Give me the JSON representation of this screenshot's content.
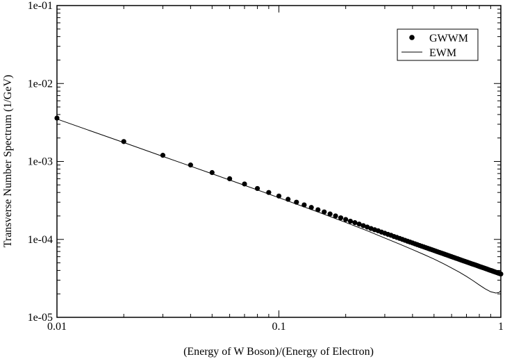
{
  "chart_data": {
    "type": "scatter",
    "title": "",
    "xlabel": "(Energy of W Boson)/(Energy of Electron)",
    "ylabel": "Transverse Number Spectrum (1/GeV)",
    "x_scale": "log",
    "y_scale": "log",
    "xlim": [
      0.01,
      1
    ],
    "ylim": [
      1e-05,
      0.1
    ],
    "x_ticks": [
      {
        "value": 0.01,
        "label": "0.01"
      },
      {
        "value": 0.1,
        "label": "0.1"
      },
      {
        "value": 1,
        "label": "1"
      }
    ],
    "y_ticks": [
      {
        "value": 1e-05,
        "label": "1e-05"
      },
      {
        "value": 0.0001,
        "label": "1e-04"
      },
      {
        "value": 0.001,
        "label": "1e-03"
      },
      {
        "value": 0.01,
        "label": "1e-02"
      },
      {
        "value": 0.1,
        "label": "1e-01"
      }
    ],
    "grid": false,
    "legend_position": "top-right",
    "series": [
      {
        "name": "GWWM",
        "style": "markers",
        "color": "#000000",
        "points": [
          [
            0.01,
            0.0036
          ],
          [
            0.02,
            0.0018
          ],
          [
            0.03,
            0.0012
          ],
          [
            0.04,
            0.0009
          ],
          [
            0.05,
            0.00072
          ],
          [
            0.06,
            0.0006
          ],
          [
            0.07,
            0.000514
          ],
          [
            0.08,
            0.00045
          ],
          [
            0.09,
            0.0004
          ],
          [
            0.1,
            0.00036
          ],
          [
            0.11,
            0.000327
          ],
          [
            0.12,
            0.0003
          ],
          [
            0.13,
            0.000277
          ],
          [
            0.14,
            0.000257
          ],
          [
            0.15,
            0.00024
          ],
          [
            0.16,
            0.000225
          ],
          [
            0.17,
            0.000212
          ],
          [
            0.18,
            0.0002
          ],
          [
            0.19,
            0.000189
          ],
          [
            0.2,
            0.00018
          ],
          [
            0.21,
            0.000171
          ],
          [
            0.22,
            0.000164
          ],
          [
            0.23,
            0.000157
          ],
          [
            0.24,
            0.00015
          ],
          [
            0.25,
            0.000144
          ],
          [
            0.26,
            0.000138
          ],
          [
            0.27,
            0.000133
          ],
          [
            0.28,
            0.000129
          ],
          [
            0.29,
            0.000124
          ],
          [
            0.3,
            0.00012
          ],
          [
            0.31,
            0.000116
          ],
          [
            0.32,
            0.000113
          ],
          [
            0.33,
            0.000109
          ],
          [
            0.34,
            0.000106
          ],
          [
            0.35,
            0.000103
          ],
          [
            0.36,
            0.0001
          ],
          [
            0.37,
            9.73e-05
          ],
          [
            0.38,
            9.47e-05
          ],
          [
            0.39,
            9.23e-05
          ],
          [
            0.4,
            9e-05
          ],
          [
            0.41,
            8.78e-05
          ],
          [
            0.42,
            8.57e-05
          ],
          [
            0.43,
            8.37e-05
          ],
          [
            0.44,
            8.18e-05
          ],
          [
            0.45,
            8e-05
          ],
          [
            0.46,
            7.83e-05
          ],
          [
            0.47,
            7.66e-05
          ],
          [
            0.48,
            7.5e-05
          ],
          [
            0.49,
            7.35e-05
          ],
          [
            0.5,
            7.2e-05
          ],
          [
            0.51,
            7.06e-05
          ],
          [
            0.52,
            6.92e-05
          ],
          [
            0.53,
            6.79e-05
          ],
          [
            0.54,
            6.67e-05
          ],
          [
            0.55,
            6.55e-05
          ],
          [
            0.56,
            6.43e-05
          ],
          [
            0.57,
            6.32e-05
          ],
          [
            0.58,
            6.21e-05
          ],
          [
            0.59,
            6.1e-05
          ],
          [
            0.6,
            6e-05
          ],
          [
            0.61,
            5.9e-05
          ],
          [
            0.62,
            5.81e-05
          ],
          [
            0.63,
            5.71e-05
          ],
          [
            0.64,
            5.63e-05
          ],
          [
            0.65,
            5.54e-05
          ],
          [
            0.66,
            5.45e-05
          ],
          [
            0.67,
            5.37e-05
          ],
          [
            0.68,
            5.29e-05
          ],
          [
            0.69,
            5.22e-05
          ],
          [
            0.7,
            5.14e-05
          ],
          [
            0.71,
            5.07e-05
          ],
          [
            0.72,
            5e-05
          ],
          [
            0.73,
            4.93e-05
          ],
          [
            0.74,
            4.86e-05
          ],
          [
            0.75,
            4.8e-05
          ],
          [
            0.76,
            4.74e-05
          ],
          [
            0.77,
            4.68e-05
          ],
          [
            0.78,
            4.62e-05
          ],
          [
            0.79,
            4.56e-05
          ],
          [
            0.8,
            4.5e-05
          ],
          [
            0.81,
            4.44e-05
          ],
          [
            0.82,
            4.39e-05
          ],
          [
            0.83,
            4.34e-05
          ],
          [
            0.84,
            4.29e-05
          ],
          [
            0.85,
            4.24e-05
          ],
          [
            0.86,
            4.19e-05
          ],
          [
            0.87,
            4.14e-05
          ],
          [
            0.88,
            4.09e-05
          ],
          [
            0.89,
            4.04e-05
          ],
          [
            0.9,
            4e-05
          ],
          [
            0.91,
            3.96e-05
          ],
          [
            0.92,
            3.91e-05
          ],
          [
            0.93,
            3.87e-05
          ],
          [
            0.94,
            3.83e-05
          ],
          [
            0.95,
            3.79e-05
          ],
          [
            0.96,
            3.75e-05
          ],
          [
            0.97,
            3.71e-05
          ],
          [
            0.98,
            3.67e-05
          ],
          [
            0.99,
            3.64e-05
          ],
          [
            1.0,
            3.6e-05
          ]
        ]
      },
      {
        "name": "EWM",
        "style": "line",
        "color": "#000000",
        "points": [
          [
            0.01,
            0.0035
          ],
          [
            0.015,
            0.00233
          ],
          [
            0.02,
            0.00175
          ],
          [
            0.03,
            0.00116
          ],
          [
            0.04,
            0.00087
          ],
          [
            0.05,
            0.000695
          ],
          [
            0.07,
            0.000494
          ],
          [
            0.1,
            0.000343
          ],
          [
            0.15,
            0.000225
          ],
          [
            0.2,
            0.000165
          ],
          [
            0.25,
            0.000129
          ],
          [
            0.3,
            0.000104
          ],
          [
            0.35,
            8.7e-05
          ],
          [
            0.4,
            7.4e-05
          ],
          [
            0.45,
            6.4e-05
          ],
          [
            0.5,
            5.6e-05
          ],
          [
            0.55,
            4.9e-05
          ],
          [
            0.6,
            4.3e-05
          ],
          [
            0.65,
            3.8e-05
          ],
          [
            0.7,
            3.35e-05
          ],
          [
            0.75,
            2.95e-05
          ],
          [
            0.8,
            2.6e-05
          ],
          [
            0.85,
            2.32e-05
          ],
          [
            0.9,
            2.13e-05
          ],
          [
            0.95,
            2.05e-05
          ],
          [
            0.98,
            2.08e-05
          ],
          [
            1.0,
            2.2e-05
          ]
        ]
      }
    ]
  }
}
